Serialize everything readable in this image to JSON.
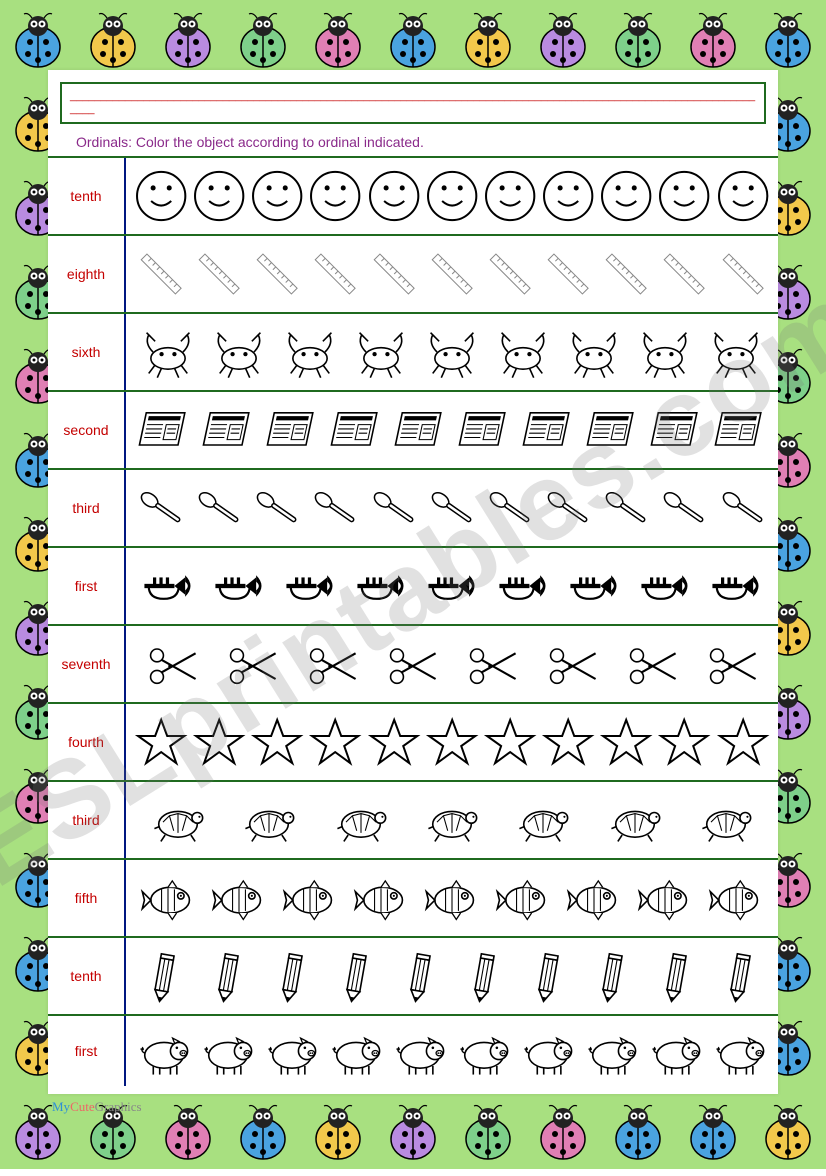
{
  "instruction": "Ordinals: Color the object according to ordinal indicated.",
  "title_dashes": "____________________________________________________________________________________________________________________",
  "watermark": "ESLprintables.com",
  "credit": {
    "my": "My",
    "cute": "Cute",
    "graphics": "Graphics"
  },
  "ladybug_colors": [
    "#4aa3e0",
    "#f2c84b",
    "#b98be0",
    "#7ed08a",
    "#e07fb4",
    "#4aa3e0",
    "#f2c84b",
    "#b98be0",
    "#7ed08a",
    "#e07fb4",
    "#4aa3e0"
  ],
  "ladybug_bg_rows": 14,
  "rows": [
    {
      "label": "tenth",
      "icon": "smiley",
      "count": 11
    },
    {
      "label": "eighth",
      "icon": "ruler",
      "count": 11
    },
    {
      "label": "sixth",
      "icon": "crab",
      "count": 9
    },
    {
      "label": "second",
      "icon": "newspaper",
      "count": 10
    },
    {
      "label": "third",
      "icon": "spoon",
      "count": 11
    },
    {
      "label": "first",
      "icon": "trumpet",
      "count": 9
    },
    {
      "label": "seventh",
      "icon": "scissors",
      "count": 8
    },
    {
      "label": "fourth",
      "icon": "star",
      "count": 11
    },
    {
      "label": "third",
      "icon": "turtle",
      "count": 7
    },
    {
      "label": "fifth",
      "icon": "fish",
      "count": 9
    },
    {
      "label": "tenth",
      "icon": "pencil",
      "count": 10
    },
    {
      "label": "first",
      "icon": "pig",
      "count": 10
    }
  ],
  "colors": {
    "bg": "#a8e080",
    "row_border": "#1f6a1f",
    "label_border": "#001780",
    "label_text": "#c40000",
    "instruction_text": "#8a2a8a"
  }
}
